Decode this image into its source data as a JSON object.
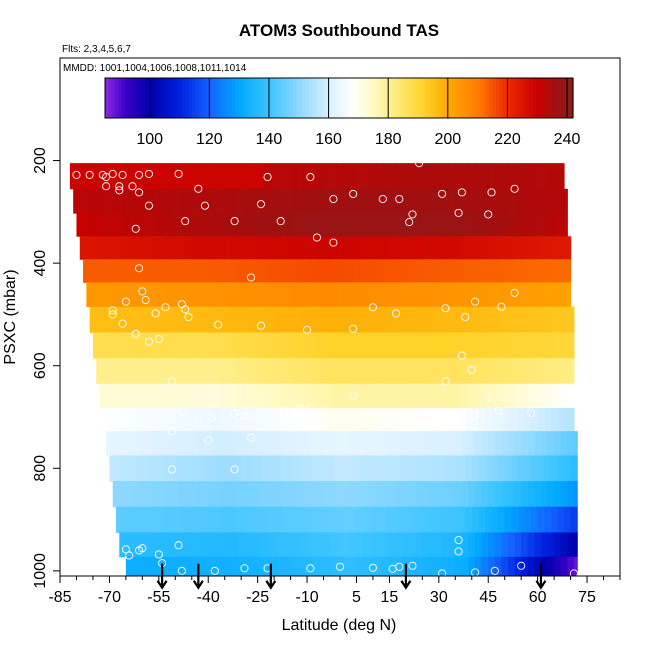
{
  "chart_data": {
    "type": "heatmap",
    "title": "ATOM3 Southbound TAS",
    "annotations": {
      "flights": "Flts: 2,3,4,5,6,7",
      "dates": "MMDD: 1001,1004,1006,1008,1011,1014"
    },
    "xlabel": "Latitude (deg N)",
    "ylabel": "PSXC (mbar)",
    "xlim": [
      -85,
      85
    ],
    "ylim": [
      1010,
      0
    ],
    "x_ticks": [
      -85,
      -70,
      -55,
      -40,
      -25,
      -10,
      5,
      15,
      30,
      45,
      60,
      75
    ],
    "y_ticks": [
      200,
      400,
      600,
      800,
      1000
    ],
    "colorbar": {
      "min": 85,
      "max": 242,
      "ticks": [
        100,
        120,
        140,
        160,
        180,
        200,
        220,
        240
      ],
      "lines": [
        100,
        120,
        140,
        160,
        180,
        200,
        220,
        240
      ],
      "stops": [
        {
          "v": 85,
          "color": "#8a2be2"
        },
        {
          "v": 92,
          "color": "#3a00c8"
        },
        {
          "v": 100,
          "color": "#0000a8"
        },
        {
          "v": 110,
          "color": "#0020e0"
        },
        {
          "v": 120,
          "color": "#1462ff"
        },
        {
          "v": 130,
          "color": "#00a8ff"
        },
        {
          "v": 140,
          "color": "#3cc4ff"
        },
        {
          "v": 150,
          "color": "#8ed8ff"
        },
        {
          "v": 160,
          "color": "#d8f0ff"
        },
        {
          "v": 168,
          "color": "#ffffff"
        },
        {
          "v": 176,
          "color": "#fff8b8"
        },
        {
          "v": 184,
          "color": "#ffe870"
        },
        {
          "v": 192,
          "color": "#ffd22a"
        },
        {
          "v": 200,
          "color": "#ffaa00"
        },
        {
          "v": 210,
          "color": "#ff7c00"
        },
        {
          "v": 220,
          "color": "#ee2a00"
        },
        {
          "v": 230,
          "color": "#c80000"
        },
        {
          "v": 236,
          "color": "#a01010"
        },
        {
          "v": 242,
          "color": "#8a1e1e"
        }
      ]
    },
    "layers": [
      {
        "p": 230,
        "lat_min": -82,
        "lat_max": -23,
        "values": [
          229,
          229,
          229,
          229,
          229
        ]
      },
      {
        "p": 230,
        "lat_min": -23,
        "lat_max": 68,
        "values": [
          232,
          233,
          234,
          234,
          233
        ]
      },
      {
        "p": 280,
        "lat_min": -81,
        "lat_max": 69,
        "values": [
          232,
          234,
          236,
          236,
          233
        ]
      },
      {
        "p": 325,
        "lat_min": -80,
        "lat_max": 69,
        "values": [
          230,
          234,
          238,
          238,
          232
        ]
      },
      {
        "p": 370,
        "lat_min": -79,
        "lat_max": 70,
        "values": [
          225,
          228,
          229,
          228,
          224
        ]
      },
      {
        "p": 415,
        "lat_min": -78,
        "lat_max": 70,
        "values": [
          214,
          214,
          216,
          214,
          212
        ]
      },
      {
        "p": 460,
        "lat_min": -77,
        "lat_max": 70,
        "values": [
          204,
          205,
          207,
          205,
          202
        ]
      },
      {
        "p": 510,
        "lat_min": -76,
        "lat_max": 71,
        "values": [
          196,
          197,
          199,
          197,
          194
        ]
      },
      {
        "p": 560,
        "lat_min": -75,
        "lat_max": 71,
        "values": [
          188,
          188,
          192,
          192,
          190
        ]
      },
      {
        "p": 610,
        "lat_min": -74,
        "lat_max": 71,
        "values": [
          181,
          181,
          186,
          186,
          182
        ]
      },
      {
        "p": 660,
        "lat_min": -73,
        "lat_max": 71,
        "values": [
          173,
          172,
          178,
          178,
          168
        ]
      },
      {
        "p": 705,
        "lat_min": -72,
        "lat_max": 71,
        "values": [
          168,
          164,
          170,
          168,
          155
        ]
      },
      {
        "p": 750,
        "lat_min": -71,
        "lat_max": 72,
        "values": [
          163,
          159,
          163,
          160,
          144
        ]
      },
      {
        "p": 800,
        "lat_min": -70,
        "lat_max": 72,
        "values": [
          157,
          152,
          157,
          154,
          137
        ]
      },
      {
        "p": 850,
        "lat_min": -69,
        "lat_max": 72,
        "values": [
          150,
          147,
          150,
          146,
          127
        ]
      },
      {
        "p": 900,
        "lat_min": -68,
        "lat_max": 72,
        "values": [
          144,
          142,
          145,
          140,
          114
        ]
      },
      {
        "p": 950,
        "lat_min": -67,
        "lat_max": 72,
        "values": [
          137,
          136,
          141,
          135,
          100
        ]
      },
      {
        "p": 995,
        "lat_min": -65,
        "lat_max": 72,
        "values": [
          132,
          133,
          138,
          132,
          88
        ]
      }
    ],
    "profile_markers": {
      "pressure": 990,
      "latitudes": [
        -54,
        -43,
        -21,
        20,
        61
      ]
    },
    "observations": [
      [
        -80,
        228
      ],
      [
        -76,
        228
      ],
      [
        -72,
        228
      ],
      [
        -71,
        232
      ],
      [
        -69,
        226
      ],
      [
        -66,
        228
      ],
      [
        -61,
        228
      ],
      [
        -58,
        226
      ],
      [
        -49,
        226
      ],
      [
        -71,
        250
      ],
      [
        -67,
        250
      ],
      [
        -67,
        258
      ],
      [
        -63,
        250
      ],
      [
        -61,
        262
      ],
      [
        -58,
        288
      ],
      [
        -43,
        255
      ],
      [
        -41,
        288
      ],
      [
        -24,
        285
      ],
      [
        -18,
        318
      ],
      [
        -32,
        318
      ],
      [
        -47,
        318
      ],
      [
        -62,
        333
      ],
      [
        -22,
        232
      ],
      [
        -9,
        232
      ],
      [
        -2,
        275
      ],
      [
        4,
        265
      ],
      [
        13,
        275
      ],
      [
        18,
        275
      ],
      [
        21,
        320
      ],
      [
        24,
        205
      ],
      [
        31,
        265
      ],
      [
        37,
        262
      ],
      [
        46,
        262
      ],
      [
        53,
        255
      ],
      [
        -7,
        350
      ],
      [
        -2,
        360
      ],
      [
        36,
        302
      ],
      [
        45,
        305
      ],
      [
        22,
        305
      ],
      [
        -27,
        428
      ],
      [
        -61,
        410
      ],
      [
        -60,
        455
      ],
      [
        -65,
        475
      ],
      [
        -59,
        472
      ],
      [
        -48,
        480
      ],
      [
        -53,
        486
      ],
      [
        -56,
        498
      ],
      [
        -69,
        492
      ],
      [
        -69,
        500
      ],
      [
        -46,
        505
      ],
      [
        -47,
        490
      ],
      [
        -37,
        520
      ],
      [
        -24,
        522
      ],
      [
        -10,
        530
      ],
      [
        4,
        528
      ],
      [
        10,
        486
      ],
      [
        17,
        498
      ],
      [
        32,
        488
      ],
      [
        38,
        505
      ],
      [
        41,
        475
      ],
      [
        49,
        485
      ],
      [
        53,
        458
      ],
      [
        -58,
        553
      ],
      [
        -62,
        538
      ],
      [
        -66,
        518
      ],
      [
        -55,
        548
      ],
      [
        37,
        580
      ],
      [
        40,
        608
      ],
      [
        32,
        630
      ],
      [
        45,
        662
      ],
      [
        -51,
        630
      ],
      [
        -54,
        700
      ],
      [
        -48,
        688
      ],
      [
        -47,
        700
      ],
      [
        -43,
        705
      ],
      [
        -39,
        700
      ],
      [
        -32,
        693
      ],
      [
        -29,
        698
      ],
      [
        -17,
        688
      ],
      [
        -12,
        683
      ],
      [
        -27,
        740
      ],
      [
        -40,
        745
      ],
      [
        -51,
        802
      ],
      [
        -32,
        802
      ],
      [
        -51,
        728
      ],
      [
        4,
        658
      ],
      [
        14,
        698
      ],
      [
        14,
        720
      ],
      [
        26,
        698
      ],
      [
        29,
        708
      ],
      [
        41,
        698
      ],
      [
        48,
        688
      ],
      [
        58,
        692
      ],
      [
        70,
        675
      ],
      [
        -60,
        956
      ],
      [
        -55,
        968
      ],
      [
        -49,
        950
      ],
      [
        -54,
        985
      ],
      [
        -48,
        1000
      ],
      [
        -38,
        1000
      ],
      [
        -29,
        995
      ],
      [
        -22,
        995
      ],
      [
        -9,
        995
      ],
      [
        0,
        992
      ],
      [
        10,
        994
      ],
      [
        16,
        996
      ],
      [
        18,
        992
      ],
      [
        22,
        990
      ],
      [
        31,
        1005
      ],
      [
        41,
        1003
      ],
      [
        47,
        1000
      ],
      [
        55,
        990
      ],
      [
        36,
        940
      ],
      [
        36,
        962
      ],
      [
        -61,
        960
      ],
      [
        -65,
        958
      ],
      [
        -70,
        958
      ],
      [
        -64,
        970
      ],
      [
        71,
        1005
      ],
      [
        -28,
        700
      ],
      [
        -9,
        680
      ]
    ]
  }
}
